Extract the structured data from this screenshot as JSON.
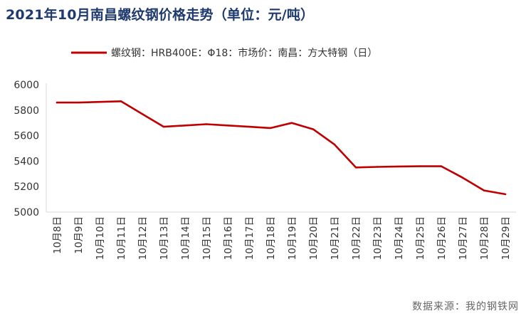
{
  "title": "2021年10月南昌螺纹钢价格走势（单位：元/吨）",
  "source": "数据来源：我的钢铁网",
  "colors": {
    "title": "#1f3a6e",
    "line": "#c00000",
    "axis": "#d9d9d9"
  },
  "chart_data": {
    "type": "line",
    "categories": [
      "10月8日",
      "10月9日",
      "10月10日",
      "10月11日",
      "10月12日",
      "10月13日",
      "10月14日",
      "10月15日",
      "10月16日",
      "10月17日",
      "10月18日",
      "10月19日",
      "10月20日",
      "10月21日",
      "10月22日",
      "10月23日",
      "10月24日",
      "10月25日",
      "10月26日",
      "10月27日",
      "10月28日",
      "10月29日"
    ],
    "series": [
      {
        "name": "螺纹钢：HRB400E：Φ18：市场价：南昌：方大特钢（日）",
        "values": [
          5860,
          5860,
          5865,
          5870,
          5770,
          5670,
          5680,
          5690,
          5680,
          5670,
          5660,
          5700,
          5650,
          5530,
          5350,
          5355,
          5358,
          5360,
          5360,
          5270,
          5170,
          5140
        ]
      }
    ],
    "yticks": [
      5000,
      5200,
      5400,
      5600,
      5800,
      6000
    ],
    "ylim": [
      5000,
      6000
    ],
    "xlabel": "",
    "ylabel": "",
    "grid": false,
    "legend": "top-center"
  }
}
